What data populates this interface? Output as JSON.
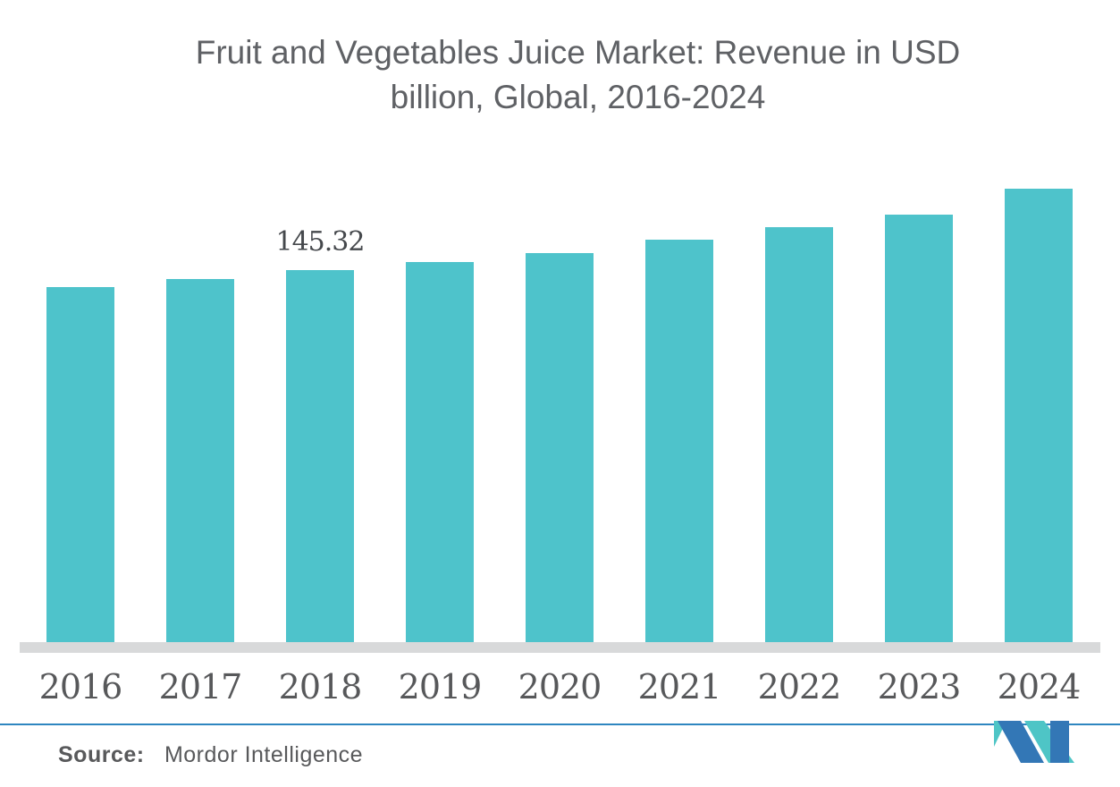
{
  "title": {
    "line1": "Fruit and Vegetables Juice Market: Revenue in USD",
    "line2": "billion, Global, 2016-2024",
    "full": "Fruit and Vegetables Juice Market: Revenue in USD billion, Global, 2016-2024"
  },
  "chart_data": {
    "type": "bar",
    "title": "Fruit and Vegetables Juice Market: Revenue in USD billion, Global, 2016-2024",
    "categories": [
      "2016",
      "2017",
      "2018",
      "2019",
      "2020",
      "2021",
      "2022",
      "2023",
      "2024"
    ],
    "values": [
      138.7,
      142.0,
      145.32,
      148.5,
      152.0,
      157.2,
      162.1,
      167.0,
      177.1
    ],
    "unit": "USD billion",
    "visible_data_labels": {
      "2018": "145.32"
    },
    "xlabel": "",
    "ylabel": "",
    "ylim": [
      0,
      180
    ],
    "grid": false,
    "legend": false,
    "y_axis_shown": false,
    "bar_color": "#4ec3cb"
  },
  "footer": {
    "source_label": "Source:",
    "source_value": "Mordor Intelligence"
  },
  "colors": {
    "bar": "#4ec3cb",
    "axis_line": "#d8d9da",
    "title_text": "#5f6165",
    "tick_text": "#57585a",
    "data_label_text": "#45484c",
    "divider": "#2e86c0",
    "logo_blue": "#3377b6",
    "logo_teal": "#4ec5c6"
  },
  "logo": {
    "name": "mordor-intelligence-logo"
  }
}
